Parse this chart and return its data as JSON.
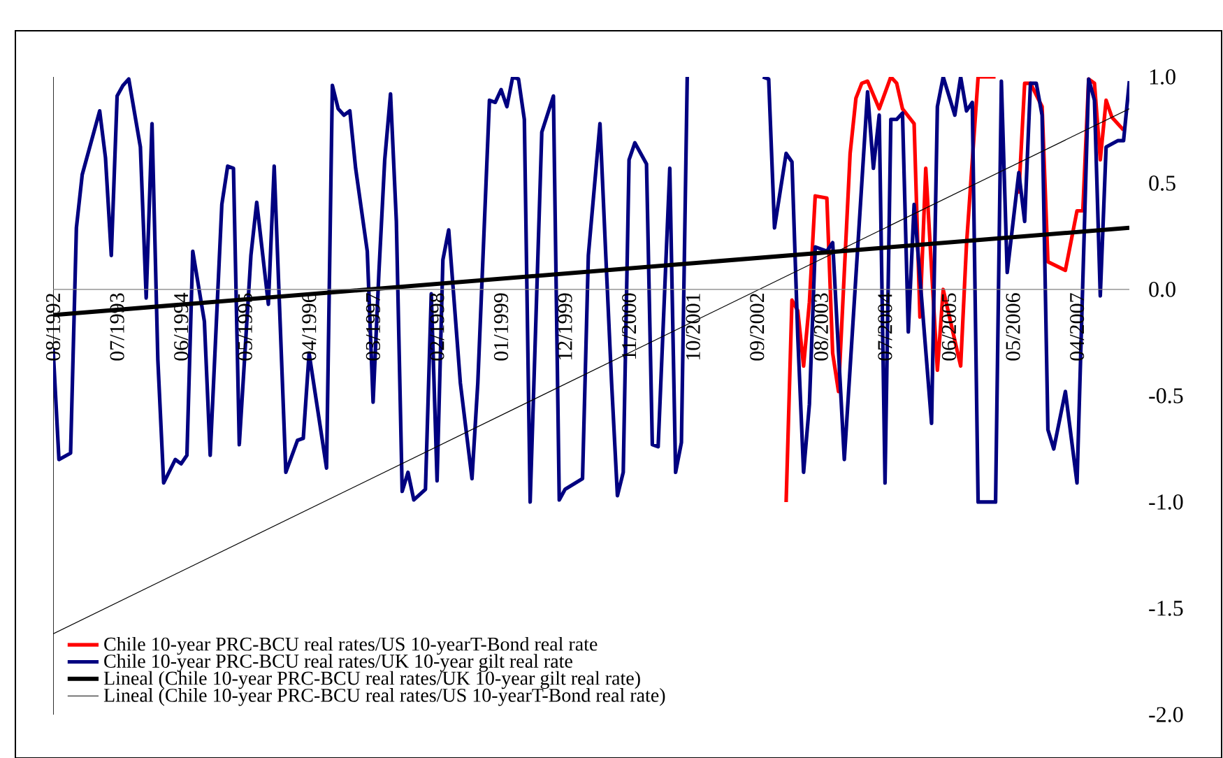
{
  "chart_data": {
    "type": "line",
    "xlim": [
      "1992-08",
      "2008-01"
    ],
    "ylim": [
      -2,
      1
    ],
    "xticks": [
      {
        "value": "1992-08",
        "label": "08/1992"
      },
      {
        "value": "1993-07",
        "label": "07/1993"
      },
      {
        "value": "1994-06",
        "label": "06/1994"
      },
      {
        "value": "1995-05",
        "label": "05/1995"
      },
      {
        "value": "1996-04",
        "label": "04/1996"
      },
      {
        "value": "1997-03",
        "label": "03/1997"
      },
      {
        "value": "1998-02",
        "label": "02/1998"
      },
      {
        "value": "1999-01",
        "label": "01/1999"
      },
      {
        "value": "1999-12",
        "label": "12/1999"
      },
      {
        "value": "2000-11",
        "label": "11/2000"
      },
      {
        "value": "2001-10",
        "label": "10/2001"
      },
      {
        "value": "2002-09",
        "label": "09/2002"
      },
      {
        "value": "2003-08",
        "label": "08/2003"
      },
      {
        "value": "2004-07",
        "label": "07/2004"
      },
      {
        "value": "2005-06",
        "label": "06/2005"
      },
      {
        "value": "2006-05",
        "label": "05/2006"
      },
      {
        "value": "2007-04",
        "label": "04/2007"
      }
    ],
    "yticks": [
      {
        "value": 1,
        "label": "1.0"
      },
      {
        "value": 0.5,
        "label": "0.5"
      },
      {
        "value": 0,
        "label": "0.0"
      },
      {
        "value": -0.5,
        "label": "-0.5"
      },
      {
        "value": -1,
        "label": "-1.0"
      },
      {
        "value": -1.5,
        "label": "-1.5"
      },
      {
        "value": -2,
        "label": "-2.0"
      }
    ],
    "legend": "bottom left",
    "marker": "none",
    "line_style": "solid",
    "series": [
      {
        "name": "Chile 10-year PRC-BCU real rates/US 10-yearT-Bond  real rate",
        "color": "#ff0000",
        "x": [
          "2003-02",
          "2003-03",
          "2003-04",
          "2003-05",
          "2003-06",
          "2003-07",
          "2003-09",
          "2003-10",
          "2003-11",
          "2004-01",
          "2004-02",
          "2004-03",
          "2004-04",
          "2004-06",
          "2004-08",
          "2004-09",
          "2004-10",
          "2004-12",
          "2005-01",
          "2005-02",
          "2005-04",
          "2005-05",
          "2005-08",
          "2005-09",
          "2005-11",
          "2005-12",
          "2006-02",
          "2006-04",
          "2006-06",
          "2006-07",
          "2006-08",
          "2006-10",
          "2006-11",
          "2007-02",
          "2007-04",
          "2007-05",
          "2007-06",
          "2007-07",
          "2007-08",
          "2007-09",
          "2007-10",
          "2007-12"
        ],
        "values": [
          -1.0,
          -0.05,
          -0.1,
          -0.36,
          -0.06,
          0.44,
          0.43,
          -0.3,
          -0.48,
          0.64,
          0.9,
          0.97,
          0.98,
          0.85,
          1.0,
          0.97,
          0.85,
          0.78,
          -0.13,
          0.57,
          -0.38,
          0.0,
          -0.36,
          0.21,
          1.0,
          1.0,
          1.0,
          null,
          0.45,
          0.97,
          0.97,
          0.86,
          0.13,
          0.09,
          0.37,
          0.37,
          0.99,
          0.97,
          0.61,
          0.89,
          0.81,
          0.75
        ]
      },
      {
        "name": "Chile 10-year PRC-BCU real rates/UK 10-year gilt real rate",
        "color": "#000080",
        "x": [
          "1992-08",
          "1992-09",
          "1992-11",
          "1992-12",
          "1993-01",
          "1993-04",
          "1993-05",
          "1993-06",
          "1993-07",
          "1993-08",
          "1993-09",
          "1993-11",
          "1993-12",
          "1994-01",
          "1994-02",
          "1994-03",
          "1994-05",
          "1994-06",
          "1994-07",
          "1994-08",
          "1994-10",
          "1994-11",
          "1995-01",
          "1995-02",
          "1995-03",
          "1995-04",
          "1995-06",
          "1995-07",
          "1995-09",
          "1995-10",
          "1995-12",
          "1996-02",
          "1996-03",
          "1996-04",
          "1996-07",
          "1996-08",
          "1996-09",
          "1996-10",
          "1996-11",
          "1996-12",
          "1997-02",
          "1997-03",
          "1997-04",
          "1997-05",
          "1997-06",
          "1997-07",
          "1997-08",
          "1997-09",
          "1997-10",
          "1997-12",
          "1998-01",
          "1998-02",
          "1998-03",
          "1998-04",
          "1998-06",
          "1998-08",
          "1998-09",
          "1998-11",
          "1998-12",
          "1999-01",
          "1999-02",
          "1999-03",
          "1999-04",
          "1999-05",
          "1999-06",
          "1999-08",
          "1999-10",
          "1999-11",
          "1999-12",
          "2000-03",
          "2000-04",
          "2000-06",
          "2000-07",
          "2000-08",
          "2000-09",
          "2000-10",
          "2000-11",
          "2000-12",
          "2001-02",
          "2001-03",
          "2001-04",
          "2001-06",
          "2001-07",
          "2001-08",
          "2001-09",
          "2001-10",
          "2002-10",
          "2002-11",
          "2002-12",
          "2003-02",
          "2003-03",
          "2003-04",
          "2003-05",
          "2003-06",
          "2003-07",
          "2003-09",
          "2003-10",
          "2003-12",
          "2004-04",
          "2004-05",
          "2004-06",
          "2004-07",
          "2004-08",
          "2004-09",
          "2004-10",
          "2004-11",
          "2004-12",
          "2005-03",
          "2005-04",
          "2005-05",
          "2005-07",
          "2005-08",
          "2005-09",
          "2005-10",
          "2005-11",
          "2006-02",
          "2006-03",
          "2006-04",
          "2006-06",
          "2006-07",
          "2006-08",
          "2006-09",
          "2006-10",
          "2006-11",
          "2006-12",
          "2007-02",
          "2007-04",
          "2007-06",
          "2007-07",
          "2007-08",
          "2007-09",
          "2007-11",
          "2007-12",
          "2008-01"
        ],
        "values": [
          -0.28,
          -0.8,
          -0.77,
          0.29,
          0.54,
          0.84,
          0.62,
          0.16,
          0.91,
          0.96,
          0.99,
          0.67,
          -0.04,
          0.78,
          -0.33,
          -0.91,
          -0.8,
          -0.82,
          -0.78,
          0.18,
          -0.15,
          -0.78,
          0.4,
          0.58,
          0.57,
          -0.73,
          0.16,
          0.41,
          -0.07,
          0.58,
          -0.86,
          -0.71,
          -0.7,
          -0.3,
          -0.84,
          0.96,
          0.85,
          0.82,
          0.84,
          0.57,
          0.18,
          -0.53,
          0.08,
          0.61,
          0.92,
          0.32,
          -0.95,
          -0.86,
          -0.99,
          -0.94,
          -0.02,
          -0.9,
          0.14,
          0.28,
          -0.44,
          -0.89,
          -0.44,
          0.89,
          0.88,
          0.94,
          0.86,
          1.0,
          0.99,
          0.8,
          -1.0,
          0.74,
          0.91,
          -0.99,
          -0.94,
          -0.89,
          0.16,
          0.78,
          0.16,
          -0.44,
          -0.97,
          -0.86,
          0.61,
          0.69,
          0.59,
          -0.73,
          -0.74,
          0.57,
          -0.86,
          -0.72,
          1.0,
          null,
          1.0,
          0.99,
          0.29,
          0.64,
          0.6,
          -0.22,
          -0.86,
          -0.54,
          0.2,
          0.18,
          0.22,
          -0.8,
          0.93,
          0.57,
          0.82,
          -0.91,
          0.8,
          0.8,
          0.83,
          -0.2,
          0.4,
          -0.63,
          0.86,
          1.0,
          0.82,
          1.0,
          0.84,
          0.88,
          -1.0,
          -1.0,
          0.98,
          0.08,
          0.55,
          0.32,
          0.97,
          0.97,
          0.82,
          -0.66,
          -0.75,
          -0.48,
          -0.91,
          0.99,
          0.89,
          -0.03,
          0.67,
          0.7,
          0.7,
          0.98
        ]
      },
      {
        "name": "Lineal (Chile 10-year PRC-BCU real rates/UK 10-year gilt real rate)",
        "color": "#000000",
        "x": [
          "1992-08",
          "2008-01"
        ],
        "values": [
          -0.12,
          0.29
        ]
      },
      {
        "name": "Lineal (Chile 10-year PRC-BCU real rates/US 10-yearT-Bond  real rate)",
        "color": "#000000",
        "x": [
          "1992-08",
          "2008-01"
        ],
        "values": [
          -1.62,
          0.85
        ]
      }
    ]
  }
}
